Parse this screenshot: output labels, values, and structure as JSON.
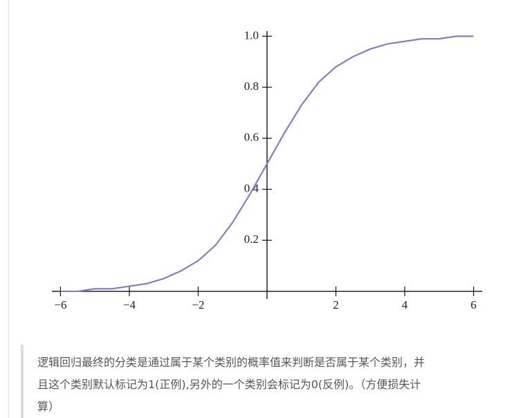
{
  "chart_data": {
    "type": "line",
    "x": [
      -6,
      -5.5,
      -5,
      -4.5,
      -4,
      -3.5,
      -3,
      -2.5,
      -2,
      -1.5,
      -1,
      -0.5,
      0,
      0.5,
      1,
      1.5,
      2,
      2.5,
      3,
      3.5,
      4,
      4.5,
      5,
      5.5,
      6
    ],
    "values": [
      0.0,
      0.0,
      0.01,
      0.01,
      0.02,
      0.03,
      0.05,
      0.08,
      0.12,
      0.18,
      0.27,
      0.38,
      0.5,
      0.62,
      0.73,
      0.82,
      0.88,
      0.92,
      0.95,
      0.97,
      0.98,
      0.99,
      0.99,
      1.0,
      1.0
    ],
    "color": "#7f7fc2",
    "xlim": [
      -6.25,
      6.25
    ],
    "xticks": [
      {
        "value": -6,
        "label": "−6"
      },
      {
        "value": -4,
        "label": "−4"
      },
      {
        "value": -2,
        "label": "−2"
      },
      2,
      4,
      6
    ],
    "ylim": [
      -0.03,
      1.02
    ],
    "yticks": [
      0.2,
      0.4,
      0.6,
      0.8,
      {
        "value": 1,
        "label": "1.0"
      }
    ]
  },
  "paragraph": {
    "lines": [
      "逻辑回归最终的分类是通过属于某个类别的概率值来判断是否属于某个类别，并",
      "且这个类别默认标记为1(正例),另外的一个类别会标记为0(反例)。（方便损失计",
      "算）"
    ]
  }
}
